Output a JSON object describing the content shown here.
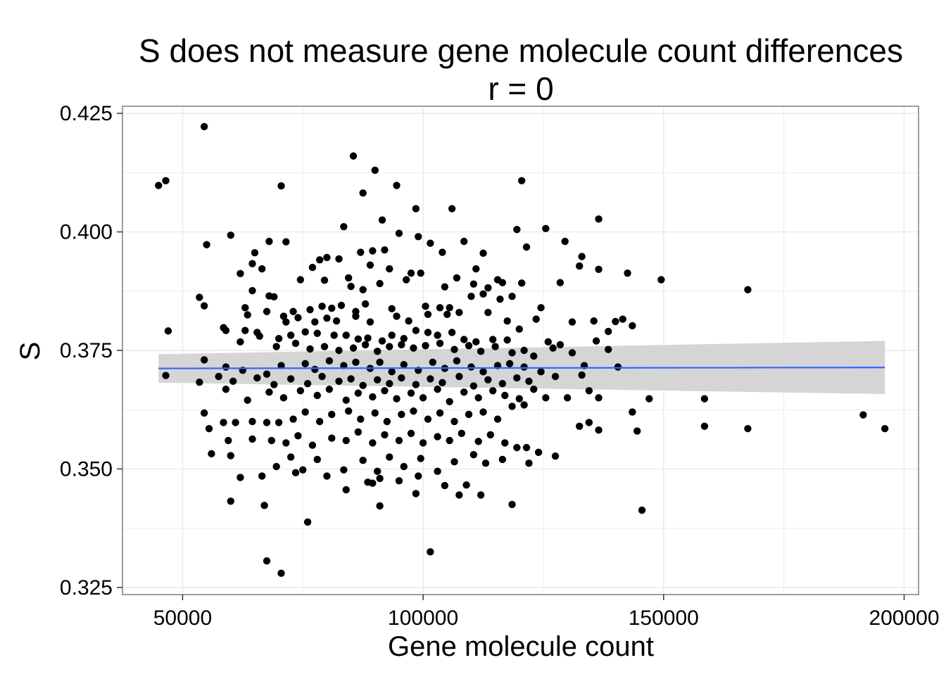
{
  "chart_data": {
    "type": "scatter",
    "title": "S does not measure gene molecule count differences",
    "subtitle": "r = 0",
    "xlabel": "Gene molecule count",
    "ylabel": "S",
    "xlim": [
      37500,
      203000
    ],
    "ylim": [
      0.3235,
      0.4265
    ],
    "x_ticks": [
      50000,
      100000,
      150000,
      200000
    ],
    "x_tick_labels": [
      "50000",
      "100000",
      "150000",
      "200000"
    ],
    "y_ticks": [
      0.325,
      0.35,
      0.375,
      0.4,
      0.425
    ],
    "y_tick_labels": [
      "0.325",
      "0.350",
      "0.375",
      "0.400",
      "0.425"
    ],
    "grid": true,
    "legend": "none",
    "colors": {
      "points": "#000000",
      "fit_line": "#3366ff",
      "confidence_band": "#d3d3d3",
      "panel_border": "#7f7f7f",
      "grid": "#ebebeb"
    },
    "fit": {
      "method": "lm",
      "x": [
        45000,
        196000
      ],
      "y": [
        0.3712,
        0.3714
      ],
      "ci_lower": [
        0.3682,
        0.3658
      ],
      "ci_upper": [
        0.3742,
        0.377
      ]
    },
    "points": [
      [
        54500,
        0.4222
      ],
      [
        85500,
        0.416
      ],
      [
        90000,
        0.413
      ],
      [
        46500,
        0.4108
      ],
      [
        45000,
        0.4098
      ],
      [
        70500,
        0.4097
      ],
      [
        94500,
        0.4098
      ],
      [
        120500,
        0.4108
      ],
      [
        87500,
        0.4082
      ],
      [
        106000,
        0.4049
      ],
      [
        98500,
        0.4049
      ],
      [
        91500,
        0.4025
      ],
      [
        136500,
        0.4027
      ],
      [
        83500,
        0.4011
      ],
      [
        125500,
        0.4007
      ],
      [
        119500,
        0.4005
      ],
      [
        60000,
        0.3993
      ],
      [
        95000,
        0.3997
      ],
      [
        99000,
        0.399
      ],
      [
        55000,
        0.3973
      ],
      [
        71500,
        0.3979
      ],
      [
        68000,
        0.398
      ],
      [
        108500,
        0.398
      ],
      [
        101500,
        0.3976
      ],
      [
        121500,
        0.3968
      ],
      [
        129500,
        0.398
      ],
      [
        65000,
        0.3956
      ],
      [
        87000,
        0.3957
      ],
      [
        89500,
        0.396
      ],
      [
        92000,
        0.3962
      ],
      [
        104000,
        0.3957
      ],
      [
        112500,
        0.3955
      ],
      [
        133000,
        0.3948
      ],
      [
        80000,
        0.3946
      ],
      [
        78500,
        0.3941
      ],
      [
        82500,
        0.3943
      ],
      [
        77000,
        0.3925
      ],
      [
        64500,
        0.3933
      ],
      [
        66500,
        0.3922
      ],
      [
        93000,
        0.3922
      ],
      [
        97500,
        0.3913
      ],
      [
        99500,
        0.3913
      ],
      [
        111000,
        0.3922
      ],
      [
        89000,
        0.393
      ],
      [
        62000,
        0.3912
      ],
      [
        136500,
        0.3921
      ],
      [
        142500,
        0.3913
      ],
      [
        132500,
        0.3928
      ],
      [
        149500,
        0.3899
      ],
      [
        167500,
        0.3878
      ],
      [
        74500,
        0.3899
      ],
      [
        79500,
        0.3898
      ],
      [
        84500,
        0.3903
      ],
      [
        85000,
        0.3885
      ],
      [
        87500,
        0.3878
      ],
      [
        91000,
        0.3891
      ],
      [
        96500,
        0.3899
      ],
      [
        104500,
        0.3884
      ],
      [
        107000,
        0.3903
      ],
      [
        110500,
        0.389
      ],
      [
        113500,
        0.3882
      ],
      [
        115500,
        0.3899
      ],
      [
        116500,
        0.3893
      ],
      [
        120500,
        0.3892
      ],
      [
        128500,
        0.3893
      ],
      [
        53500,
        0.3862
      ],
      [
        54500,
        0.3844
      ],
      [
        64500,
        0.3876
      ],
      [
        68000,
        0.3865
      ],
      [
        69000,
        0.3863
      ],
      [
        73000,
        0.3832
      ],
      [
        76500,
        0.3836
      ],
      [
        79000,
        0.3843
      ],
      [
        81000,
        0.3839
      ],
      [
        83000,
        0.3845
      ],
      [
        86000,
        0.3832
      ],
      [
        88000,
        0.3848
      ],
      [
        93500,
        0.3838
      ],
      [
        100500,
        0.3843
      ],
      [
        103500,
        0.384
      ],
      [
        105500,
        0.384
      ],
      [
        110000,
        0.3864
      ],
      [
        112500,
        0.3869
      ],
      [
        116000,
        0.3858
      ],
      [
        118500,
        0.3864
      ],
      [
        124500,
        0.384
      ],
      [
        141500,
        0.3816
      ],
      [
        140000,
        0.3811
      ],
      [
        143500,
        0.3802
      ],
      [
        63000,
        0.384
      ],
      [
        63500,
        0.3825
      ],
      [
        67500,
        0.3832
      ],
      [
        71000,
        0.3822
      ],
      [
        71500,
        0.381
      ],
      [
        74000,
        0.3819
      ],
      [
        77500,
        0.381
      ],
      [
        80000,
        0.3818
      ],
      [
        82000,
        0.3812
      ],
      [
        86000,
        0.3822
      ],
      [
        89000,
        0.381
      ],
      [
        94500,
        0.3822
      ],
      [
        97000,
        0.3812
      ],
      [
        101000,
        0.3826
      ],
      [
        105000,
        0.3826
      ],
      [
        107500,
        0.383
      ],
      [
        113500,
        0.383
      ],
      [
        117500,
        0.3812
      ],
      [
        123500,
        0.3816
      ],
      [
        131000,
        0.381
      ],
      [
        135500,
        0.3812
      ],
      [
        58500,
        0.3798
      ],
      [
        63000,
        0.3792
      ],
      [
        65500,
        0.3788
      ],
      [
        70000,
        0.3775
      ],
      [
        72500,
        0.3782
      ],
      [
        75500,
        0.3789
      ],
      [
        78000,
        0.3786
      ],
      [
        81500,
        0.3782
      ],
      [
        84000,
        0.3782
      ],
      [
        86500,
        0.3774
      ],
      [
        88500,
        0.3776
      ],
      [
        91500,
        0.377
      ],
      [
        93500,
        0.3782
      ],
      [
        96000,
        0.3775
      ],
      [
        98500,
        0.3792
      ],
      [
        101000,
        0.3788
      ],
      [
        103000,
        0.3782
      ],
      [
        106000,
        0.3788
      ],
      [
        108500,
        0.3773
      ],
      [
        111000,
        0.3768
      ],
      [
        114500,
        0.3773
      ],
      [
        117500,
        0.3772
      ],
      [
        120000,
        0.3795
      ],
      [
        126000,
        0.3768
      ],
      [
        128500,
        0.3762
      ],
      [
        136000,
        0.377
      ],
      [
        138500,
        0.379
      ],
      [
        47000,
        0.3791
      ],
      [
        59000,
        0.3792
      ],
      [
        62000,
        0.3768
      ],
      [
        66000,
        0.378
      ],
      [
        69500,
        0.3758
      ],
      [
        73500,
        0.3765
      ],
      [
        76500,
        0.3753
      ],
      [
        79500,
        0.3758
      ],
      [
        82500,
        0.375
      ],
      [
        85500,
        0.3755
      ],
      [
        88000,
        0.3762
      ],
      [
        90500,
        0.3748
      ],
      [
        93000,
        0.3758
      ],
      [
        95500,
        0.3762
      ],
      [
        98000,
        0.3755
      ],
      [
        100500,
        0.376
      ],
      [
        103500,
        0.3765
      ],
      [
        106500,
        0.3752
      ],
      [
        109500,
        0.376
      ],
      [
        112000,
        0.3748
      ],
      [
        115000,
        0.3758
      ],
      [
        118500,
        0.3745
      ],
      [
        121000,
        0.375
      ],
      [
        123000,
        0.3738
      ],
      [
        127000,
        0.3755
      ],
      [
        131000,
        0.3745
      ],
      [
        138500,
        0.3752
      ],
      [
        54500,
        0.373
      ],
      [
        59000,
        0.3715
      ],
      [
        62500,
        0.3708
      ],
      [
        67500,
        0.37
      ],
      [
        70500,
        0.3718
      ],
      [
        75500,
        0.3722
      ],
      [
        77500,
        0.371
      ],
      [
        80500,
        0.3728
      ],
      [
        83500,
        0.3718
      ],
      [
        86000,
        0.3725
      ],
      [
        89000,
        0.3712
      ],
      [
        91000,
        0.3725
      ],
      [
        93500,
        0.3705
      ],
      [
        96000,
        0.372
      ],
      [
        99000,
        0.3708
      ],
      [
        102000,
        0.3725
      ],
      [
        104500,
        0.3712
      ],
      [
        107000,
        0.3728
      ],
      [
        110000,
        0.3715
      ],
      [
        112500,
        0.3705
      ],
      [
        115500,
        0.3718
      ],
      [
        118000,
        0.3722
      ],
      [
        121000,
        0.3715
      ],
      [
        124500,
        0.3705
      ],
      [
        133500,
        0.3718
      ],
      [
        140500,
        0.3715
      ],
      [
        46500,
        0.3697
      ],
      [
        53500,
        0.3683
      ],
      [
        57500,
        0.3695
      ],
      [
        60500,
        0.3685
      ],
      [
        65500,
        0.3692
      ],
      [
        69000,
        0.3678
      ],
      [
        72500,
        0.369
      ],
      [
        76000,
        0.368
      ],
      [
        79000,
        0.3695
      ],
      [
        82500,
        0.3685
      ],
      [
        85000,
        0.369
      ],
      [
        87500,
        0.3676
      ],
      [
        90500,
        0.3688
      ],
      [
        93000,
        0.368
      ],
      [
        95500,
        0.3692
      ],
      [
        98500,
        0.3678
      ],
      [
        101500,
        0.369
      ],
      [
        104000,
        0.3682
      ],
      [
        107500,
        0.3695
      ],
      [
        110500,
        0.3675
      ],
      [
        113500,
        0.3688
      ],
      [
        116500,
        0.368
      ],
      [
        119500,
        0.3692
      ],
      [
        122000,
        0.3685
      ],
      [
        127500,
        0.3695
      ],
      [
        133000,
        0.3698
      ],
      [
        59000,
        0.3668
      ],
      [
        63500,
        0.3645
      ],
      [
        68000,
        0.3662
      ],
      [
        71000,
        0.365
      ],
      [
        74500,
        0.3665
      ],
      [
        78000,
        0.3655
      ],
      [
        80500,
        0.3668
      ],
      [
        84000,
        0.3645
      ],
      [
        86500,
        0.366
      ],
      [
        89500,
        0.3652
      ],
      [
        92000,
        0.3665
      ],
      [
        94500,
        0.3648
      ],
      [
        97500,
        0.366
      ],
      [
        100000,
        0.365
      ],
      [
        103000,
        0.3668
      ],
      [
        105500,
        0.3642
      ],
      [
        108500,
        0.3662
      ],
      [
        111500,
        0.365
      ],
      [
        114500,
        0.3665
      ],
      [
        117000,
        0.3655
      ],
      [
        120000,
        0.3648
      ],
      [
        123000,
        0.3668
      ],
      [
        125500,
        0.365
      ],
      [
        130000,
        0.365
      ],
      [
        134500,
        0.3665
      ],
      [
        136500,
        0.365
      ],
      [
        147000,
        0.3648
      ],
      [
        158500,
        0.3648
      ],
      [
        54500,
        0.3618
      ],
      [
        58500,
        0.3598
      ],
      [
        61000,
        0.3598
      ],
      [
        64500,
        0.36
      ],
      [
        67500,
        0.3598
      ],
      [
        70000,
        0.3598
      ],
      [
        73000,
        0.3605
      ],
      [
        75500,
        0.362
      ],
      [
        78500,
        0.36
      ],
      [
        81000,
        0.3615
      ],
      [
        84500,
        0.3622
      ],
      [
        87000,
        0.3605
      ],
      [
        90000,
        0.3618
      ],
      [
        92500,
        0.36
      ],
      [
        95500,
        0.3615
      ],
      [
        98000,
        0.3622
      ],
      [
        101000,
        0.3605
      ],
      [
        103500,
        0.3618
      ],
      [
        106500,
        0.36
      ],
      [
        109500,
        0.3615
      ],
      [
        112500,
        0.362
      ],
      [
        115500,
        0.3605
      ],
      [
        118500,
        0.3632
      ],
      [
        121000,
        0.3635
      ],
      [
        132500,
        0.359
      ],
      [
        134500,
        0.3598
      ],
      [
        136500,
        0.3582
      ],
      [
        143500,
        0.362
      ],
      [
        144500,
        0.358
      ],
      [
        158500,
        0.359
      ],
      [
        167500,
        0.3585
      ],
      [
        191500,
        0.3614
      ],
      [
        196000,
        0.3585
      ],
      [
        55500,
        0.3585
      ],
      [
        59500,
        0.356
      ],
      [
        64500,
        0.3563
      ],
      [
        68500,
        0.356
      ],
      [
        71500,
        0.3555
      ],
      [
        74000,
        0.357
      ],
      [
        77000,
        0.355
      ],
      [
        81000,
        0.3565
      ],
      [
        84000,
        0.356
      ],
      [
        86500,
        0.3578
      ],
      [
        89500,
        0.3555
      ],
      [
        92000,
        0.3572
      ],
      [
        95000,
        0.356
      ],
      [
        97500,
        0.3575
      ],
      [
        100000,
        0.3555
      ],
      [
        103000,
        0.3568
      ],
      [
        105500,
        0.356
      ],
      [
        108000,
        0.3575
      ],
      [
        111500,
        0.3558
      ],
      [
        114000,
        0.3572
      ],
      [
        117000,
        0.3555
      ],
      [
        119500,
        0.3545
      ],
      [
        121500,
        0.3545
      ],
      [
        124000,
        0.3535
      ],
      [
        56000,
        0.3532
      ],
      [
        60000,
        0.3528
      ],
      [
        69500,
        0.3505
      ],
      [
        72500,
        0.3525
      ],
      [
        75000,
        0.3498
      ],
      [
        78000,
        0.352
      ],
      [
        83500,
        0.3498
      ],
      [
        87500,
        0.3518
      ],
      [
        90500,
        0.3495
      ],
      [
        93000,
        0.3525
      ],
      [
        96000,
        0.3505
      ],
      [
        99500,
        0.3522
      ],
      [
        103000,
        0.3495
      ],
      [
        106500,
        0.3515
      ],
      [
        110500,
        0.353
      ],
      [
        113000,
        0.3512
      ],
      [
        116500,
        0.352
      ],
      [
        122000,
        0.3512
      ],
      [
        127500,
        0.3527
      ],
      [
        62000,
        0.3482
      ],
      [
        66500,
        0.3485
      ],
      [
        73500,
        0.3492
      ],
      [
        80000,
        0.3485
      ],
      [
        88500,
        0.3472
      ],
      [
        91000,
        0.348
      ],
      [
        95000,
        0.3475
      ],
      [
        99000,
        0.3485
      ],
      [
        104500,
        0.3465
      ],
      [
        107500,
        0.3445
      ],
      [
        84000,
        0.3456
      ],
      [
        89500,
        0.347
      ],
      [
        60000,
        0.3432
      ],
      [
        67000,
        0.3423
      ],
      [
        91000,
        0.3422
      ],
      [
        98500,
        0.3448
      ],
      [
        109000,
        0.3466
      ],
      [
        112000,
        0.3445
      ],
      [
        118500,
        0.3425
      ],
      [
        145500,
        0.3413
      ],
      [
        76000,
        0.3388
      ],
      [
        67500,
        0.3306
      ],
      [
        70500,
        0.328
      ],
      [
        101500,
        0.3325
      ]
    ]
  }
}
